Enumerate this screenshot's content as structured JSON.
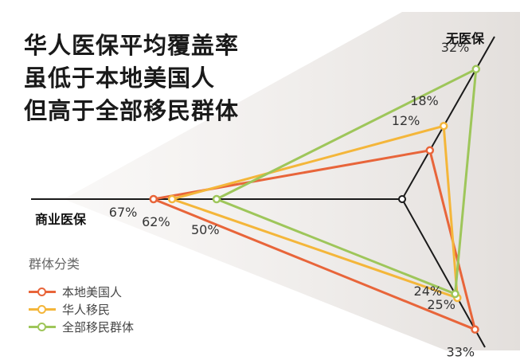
{
  "title_lines": [
    "华人医保平均覆盖率",
    "虽低于本地美国人",
    "但高于全部移民群体"
  ],
  "chart_data": {
    "type": "radar",
    "axes": [
      "无医保",
      "商业医保",
      ""
    ],
    "series": [
      {
        "name": "本地美国人",
        "color": "#e8653a",
        "values": [
          12,
          67,
          33
        ],
        "labels": [
          "12%",
          "67%",
          "33%"
        ]
      },
      {
        "name": "华人移民",
        "color": "#f4b63a",
        "values": [
          18,
          62,
          25
        ],
        "labels": [
          "18%",
          "62%",
          "25%"
        ]
      },
      {
        "name": "全部移民群体",
        "color": "#9ec65a",
        "values": [
          32,
          50,
          24
        ],
        "labels": [
          "32%",
          "50%",
          "24%"
        ]
      }
    ],
    "legend": {
      "title": "群体分类",
      "position": "bottom-left"
    },
    "grid": false
  }
}
